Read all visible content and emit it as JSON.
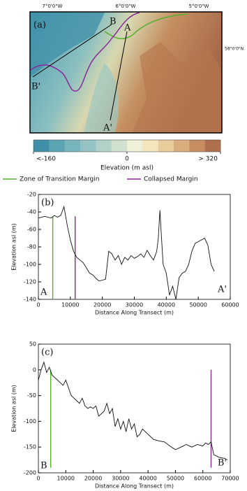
{
  "map": {
    "panel_label": "(a)",
    "lon_labels": [
      "7°0'0\"W",
      "6°0'0\"W",
      "5°0'0\"W"
    ],
    "lat_label": "58°0'0\"N",
    "transect_labels": [
      "A",
      "A'",
      "B",
      "B'"
    ],
    "colorbar": {
      "label": "Elevation (m asl)",
      "ticks": [
        {
          "value": -160,
          "label": "<-160"
        },
        0,
        {
          "value": 320,
          "label": "> 320"
        }
      ],
      "colors": [
        "#3f8fa8",
        "#5aa3b3",
        "#78b4bc",
        "#95c3c3",
        "#b2d2c9",
        "#cfe2d0",
        "#eef0d8",
        "#f4e5bd",
        "#e9cc9c",
        "#d9ad7c",
        "#c68c62",
        "#b06f4f"
      ]
    }
  },
  "legend": {
    "items": [
      {
        "label": "Zone of Transition Margin",
        "color": "#55b030"
      },
      {
        "label": "Collapsed Margin",
        "color": "#8a2a9a"
      }
    ]
  },
  "chart_data": [
    {
      "type": "line",
      "panel_label": "(b)",
      "x_label": "Distance Along Transect (m)",
      "y_label": "Elevation asl (m)",
      "corner_labels": [
        "A",
        "A'"
      ],
      "xlim": [
        0,
        60000
      ],
      "xticks": [
        0,
        10000,
        20000,
        30000,
        40000,
        50000,
        60000
      ],
      "ylim": [
        -140,
        -20
      ],
      "yticks": [
        -140,
        -120,
        -100,
        -80,
        -60,
        -40,
        -20
      ],
      "x": [
        0,
        2000,
        4000,
        5000,
        6000,
        7000,
        8000,
        9000,
        10000,
        11000,
        12000,
        13000,
        14000,
        15000,
        16000,
        17000,
        18000,
        19000,
        20000,
        21000,
        22000,
        23000,
        24000,
        25000,
        26000,
        27000,
        28000,
        29000,
        30000,
        31000,
        32000,
        33000,
        34000,
        35000,
        36000,
        37000,
        37500,
        38000,
        38500,
        39000,
        40000,
        41000,
        42000,
        43000,
        44000,
        45000,
        46000,
        47000,
        48000,
        49000,
        50000,
        51000,
        52000,
        53000,
        54000,
        55000
      ],
      "series": [
        {
          "color": "#111111",
          "values": [
            -47,
            -45,
            -47,
            -44,
            -46,
            -44,
            -34,
            -55,
            -72,
            -85,
            -92,
            -95,
            -98,
            -104,
            -110,
            -112,
            -116,
            -119,
            -118,
            -117,
            -85,
            -88,
            -95,
            -90,
            -100,
            -92,
            -95,
            -90,
            -93,
            -91,
            -88,
            -92,
            -84,
            -90,
            -95,
            -85,
            -70,
            -38,
            -70,
            -100,
            -110,
            -135,
            -125,
            -140,
            -115,
            -110,
            -108,
            -100,
            -85,
            -76,
            -74,
            -72,
            -70,
            -78,
            -100,
            -108
          ]
        }
      ],
      "vlines": [
        {
          "x": 4500,
          "ymin": -140,
          "ymax": -45,
          "color": "#55b030"
        },
        {
          "x": 11500,
          "ymin": -140,
          "ymax": -45,
          "color": "#8a2a9a"
        }
      ]
    },
    {
      "type": "line",
      "panel_label": "(c)",
      "x_label": "Distance Along Transect (m)",
      "y_label": "Elevation asl (m)",
      "corner_labels": [
        "B",
        "B'"
      ],
      "xlim": [
        0,
        70000
      ],
      "xticks": [
        0,
        10000,
        20000,
        30000,
        40000,
        50000,
        60000,
        70000
      ],
      "ylim": [
        -200,
        50
      ],
      "yticks": [
        -200,
        -150,
        -100,
        -50,
        0,
        50
      ],
      "x": [
        0,
        1000,
        2000,
        3000,
        4000,
        5000,
        6000,
        7000,
        8000,
        9000,
        10000,
        11000,
        12000,
        13000,
        14000,
        15000,
        16000,
        17000,
        18000,
        19000,
        20000,
        21000,
        22000,
        23000,
        24000,
        25000,
        26000,
        27000,
        28000,
        29000,
        30000,
        31000,
        32000,
        33000,
        34000,
        35000,
        36000,
        37000,
        38000,
        40000,
        42000,
        44000,
        46000,
        48000,
        50000,
        52000,
        54000,
        56000,
        58000,
        60000,
        61000,
        62000,
        63000,
        64000,
        66000,
        68000,
        69000
      ],
      "series": [
        {
          "color": "#111111",
          "values": [
            -20,
            0,
            15,
            -5,
            5,
            -10,
            -15,
            -20,
            -25,
            -30,
            -20,
            -35,
            -50,
            -55,
            -60,
            -65,
            -55,
            -70,
            -75,
            -72,
            -75,
            -70,
            -90,
            -85,
            -80,
            -65,
            -85,
            -75,
            -110,
            -95,
            -115,
            -100,
            -120,
            -95,
            -115,
            -105,
            -130,
            -125,
            -115,
            -125,
            -135,
            -138,
            -140,
            -148,
            -155,
            -150,
            -145,
            -150,
            -145,
            -148,
            -142,
            -145,
            -140,
            -165,
            -170,
            -172,
            -175
          ]
        }
      ],
      "vlines": [
        {
          "x": 4500,
          "ymin": -190,
          "ymax": 0,
          "color": "#55b030"
        },
        {
          "x": 63000,
          "ymin": -190,
          "ymax": 0,
          "color": "#8a2a9a"
        }
      ]
    }
  ]
}
